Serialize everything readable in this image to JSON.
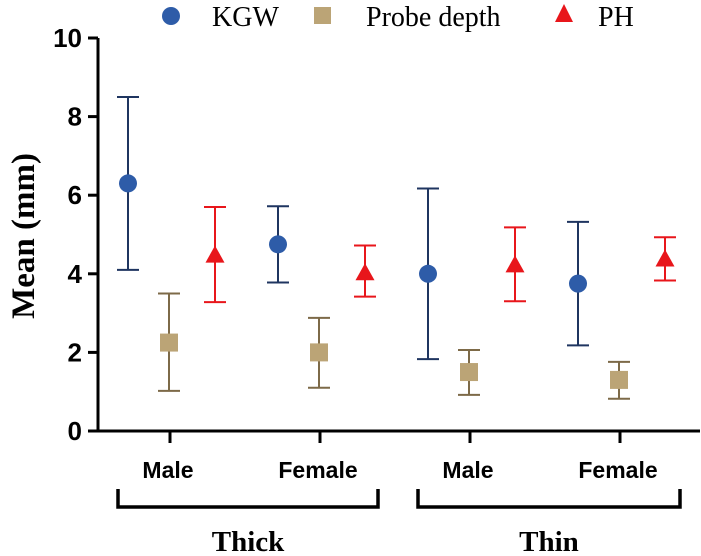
{
  "chart_data": {
    "type": "scatter",
    "ylabel": "Mean (mm)",
    "ylim": [
      0,
      10
    ],
    "yticks": [
      "0",
      "2",
      "4",
      "6",
      "8",
      "10"
    ],
    "categories": [
      "Male",
      "Female",
      "Male",
      "Female"
    ],
    "groups": [
      {
        "label": "Thick",
        "categories": [
          0,
          1
        ]
      },
      {
        "label": "Thin",
        "categories": [
          2,
          3
        ]
      }
    ],
    "legend_placement": "top",
    "grid": false,
    "series": [
      {
        "name": "KGW",
        "marker": "circle",
        "color": "#2E5CA8",
        "values": [
          6.3,
          4.75,
          4.0,
          3.75
        ],
        "err_low": [
          4.1,
          3.78,
          1.83,
          2.18
        ],
        "err_high": [
          8.5,
          5.72,
          6.17,
          5.32
        ]
      },
      {
        "name": "Probe depth",
        "marker": "square",
        "color": "#BBA476",
        "values": [
          2.25,
          2.0,
          1.5,
          1.3
        ],
        "err_low": [
          1.02,
          1.1,
          0.92,
          0.82
        ],
        "err_high": [
          3.5,
          2.88,
          2.06,
          1.76
        ]
      },
      {
        "name": "PH",
        "marker": "triangle",
        "color": "#E8161B",
        "values": [
          4.45,
          4.0,
          4.2,
          4.35
        ],
        "err_low": [
          3.28,
          3.42,
          3.3,
          3.83
        ],
        "err_high": [
          5.7,
          4.72,
          5.18,
          4.93
        ]
      }
    ]
  },
  "legend": {
    "items": [
      {
        "label": "KGW"
      },
      {
        "label": "Probe depth"
      },
      {
        "label": "PH"
      }
    ]
  }
}
